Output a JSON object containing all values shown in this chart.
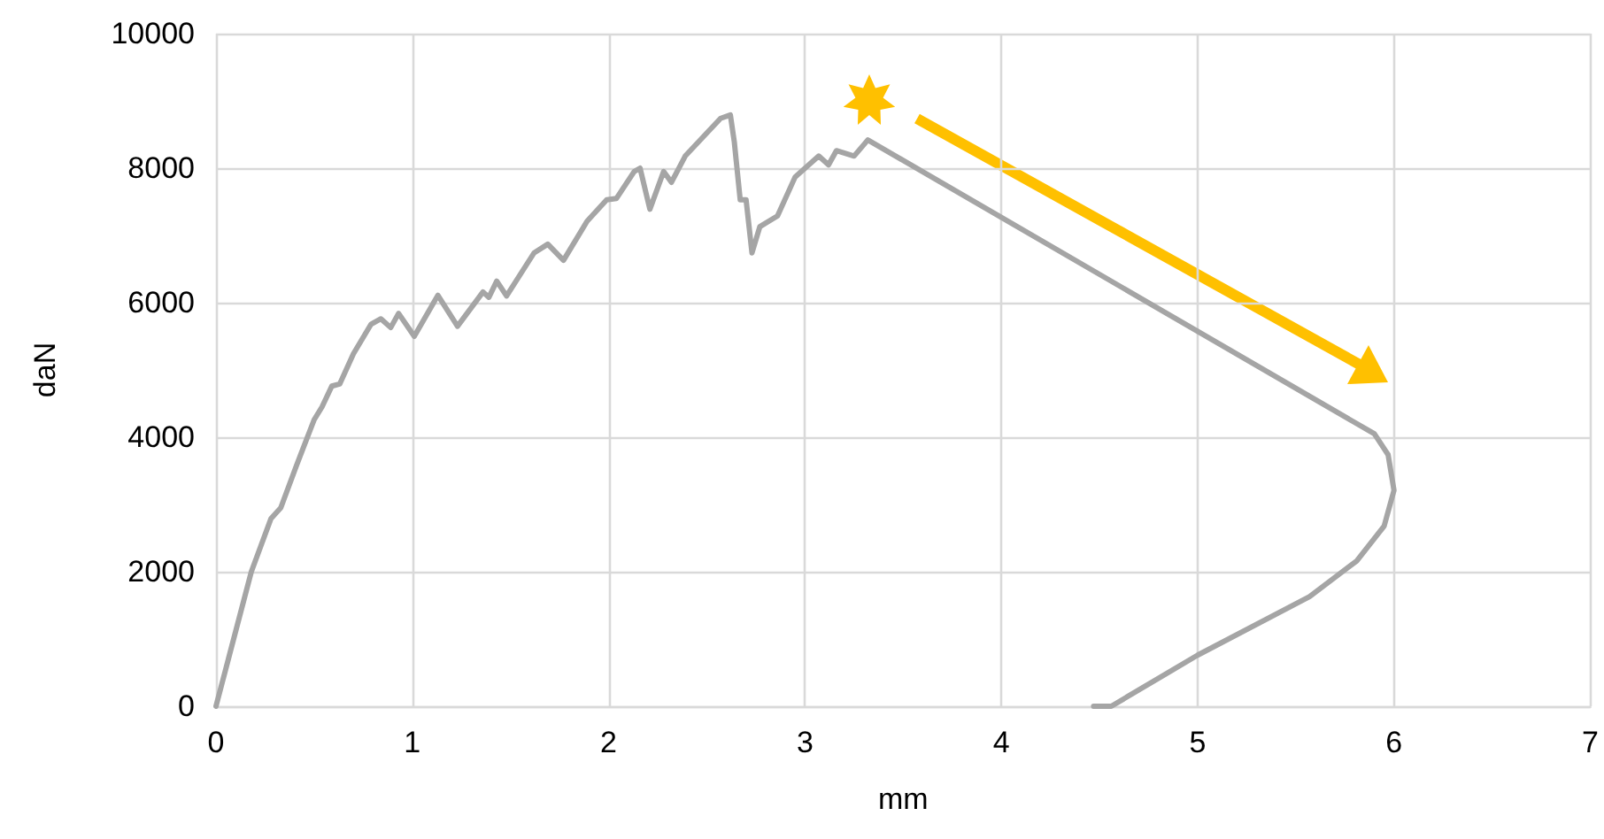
{
  "chart_data": {
    "type": "line",
    "xlabel": "mm",
    "ylabel": "daN",
    "xlim": [
      0,
      7
    ],
    "xticks": [
      0,
      1,
      2,
      3,
      4,
      5,
      6,
      7
    ],
    "ylim": [
      0,
      10000
    ],
    "yticks": [
      0,
      2000,
      4000,
      6000,
      8000,
      10000
    ],
    "grid": true,
    "marker": "none",
    "line_style": "solid",
    "series": [
      {
        "color": "#a5a5a5",
        "x": [
          0,
          0.18,
          0.28,
          0.33,
          0.41,
          0.5,
          0.54,
          0.59,
          0.63,
          0.7,
          0.79,
          0.84,
          0.89,
          0.93,
          1.01,
          1.13,
          1.23,
          1.36,
          1.39,
          1.43,
          1.48,
          1.62,
          1.69,
          1.77,
          1.89,
          1.99,
          2.04,
          2.13,
          2.16,
          2.21,
          2.28,
          2.32,
          2.39,
          2.57,
          2.62,
          2.64,
          2.67,
          2.7,
          2.73,
          2.77,
          2.86,
          2.95,
          3.07,
          3.12,
          3.16,
          3.25,
          3.32,
          5.9,
          5.97,
          6.0,
          5.95,
          5.81,
          5.57,
          5.0,
          4.56,
          4.47
        ],
        "values": [
          0,
          2000,
          2790,
          2950,
          3580,
          4260,
          4450,
          4760,
          4790,
          5240,
          5680,
          5760,
          5630,
          5840,
          5500,
          6110,
          5650,
          6160,
          6080,
          6320,
          6100,
          6740,
          6870,
          6630,
          7210,
          7530,
          7550,
          7950,
          8000,
          7390,
          7950,
          7790,
          8180,
          8740,
          8790,
          8390,
          7530,
          7530,
          6740,
          7130,
          7290,
          7870,
          8180,
          8050,
          8260,
          8180,
          8420,
          4050,
          3740,
          3210,
          2680,
          2160,
          1630,
          760,
          0,
          0
        ]
      }
    ]
  }
}
